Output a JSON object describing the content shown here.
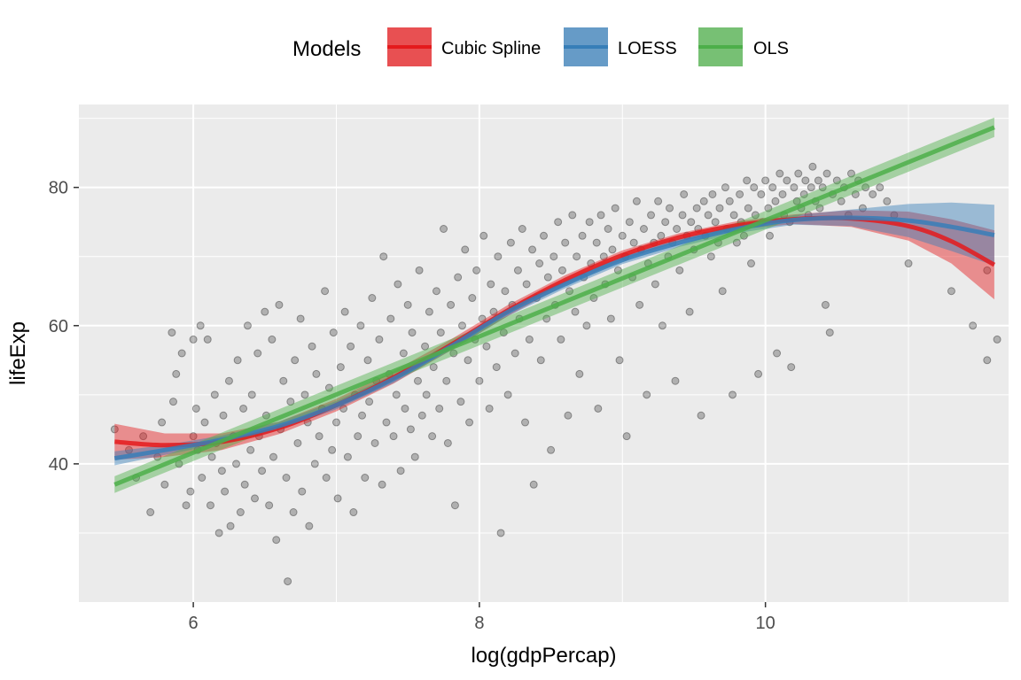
{
  "chart_data": {
    "type": "scatter",
    "xlabel": "log(gdpPercap)",
    "ylabel": "lifeExp",
    "xlim": [
      5.2,
      11.7
    ],
    "ylim": [
      20,
      92
    ],
    "x_ticks": [
      6,
      8,
      10
    ],
    "y_ticks": [
      40,
      60,
      80
    ],
    "grid": true,
    "panel_background": "#EBEBEB",
    "legend": {
      "title": "Models",
      "position": "top",
      "entries": [
        "Cubic Spline",
        "LOESS",
        "OLS"
      ]
    },
    "points_style": {
      "color": "#000000",
      "alpha": 0.25
    },
    "scatter_points": [
      [
        5.45,
        45
      ],
      [
        5.55,
        42
      ],
      [
        5.6,
        38
      ],
      [
        5.65,
        44
      ],
      [
        5.7,
        33
      ],
      [
        5.75,
        41
      ],
      [
        5.78,
        46
      ],
      [
        5.8,
        37
      ],
      [
        5.85,
        59
      ],
      [
        5.86,
        49
      ],
      [
        5.88,
        53
      ],
      [
        5.9,
        40
      ],
      [
        5.92,
        56
      ],
      [
        5.95,
        34
      ],
      [
        5.98,
        36
      ],
      [
        6.0,
        58
      ],
      [
        6.0,
        44
      ],
      [
        6.02,
        48
      ],
      [
        6.03,
        42
      ],
      [
        6.05,
        60
      ],
      [
        6.06,
        38
      ],
      [
        6.08,
        46
      ],
      [
        6.1,
        58
      ],
      [
        6.12,
        34
      ],
      [
        6.13,
        41
      ],
      [
        6.15,
        50
      ],
      [
        6.16,
        43
      ],
      [
        6.18,
        30
      ],
      [
        6.2,
        39
      ],
      [
        6.21,
        47
      ],
      [
        6.22,
        36
      ],
      [
        6.25,
        52
      ],
      [
        6.26,
        31
      ],
      [
        6.28,
        44
      ],
      [
        6.3,
        40
      ],
      [
        6.31,
        55
      ],
      [
        6.33,
        33
      ],
      [
        6.35,
        48
      ],
      [
        6.36,
        37
      ],
      [
        6.38,
        60
      ],
      [
        6.4,
        42
      ],
      [
        6.41,
        50
      ],
      [
        6.43,
        35
      ],
      [
        6.45,
        56
      ],
      [
        6.46,
        44
      ],
      [
        6.48,
        39
      ],
      [
        6.5,
        62
      ],
      [
        6.51,
        47
      ],
      [
        6.53,
        34
      ],
      [
        6.55,
        58
      ],
      [
        6.56,
        41
      ],
      [
        6.58,
        29
      ],
      [
        6.6,
        63
      ],
      [
        6.61,
        45
      ],
      [
        6.63,
        52
      ],
      [
        6.65,
        38
      ],
      [
        6.66,
        23
      ],
      [
        6.68,
        49
      ],
      [
        6.7,
        33
      ],
      [
        6.71,
        55
      ],
      [
        6.73,
        43
      ],
      [
        6.75,
        61
      ],
      [
        6.76,
        36
      ],
      [
        6.78,
        50
      ],
      [
        6.8,
        46
      ],
      [
        6.81,
        31
      ],
      [
        6.83,
        57
      ],
      [
        6.85,
        40
      ],
      [
        6.86,
        53
      ],
      [
        6.88,
        44
      ],
      [
        6.9,
        48
      ],
      [
        6.92,
        65
      ],
      [
        6.93,
        38
      ],
      [
        6.95,
        51
      ],
      [
        6.97,
        42
      ],
      [
        6.98,
        59
      ],
      [
        7.0,
        46
      ],
      [
        7.01,
        35
      ],
      [
        7.03,
        54
      ],
      [
        7.05,
        48
      ],
      [
        7.06,
        62
      ],
      [
        7.08,
        41
      ],
      [
        7.1,
        57
      ],
      [
        7.12,
        33
      ],
      [
        7.13,
        50
      ],
      [
        7.15,
        44
      ],
      [
        7.17,
        60
      ],
      [
        7.18,
        47
      ],
      [
        7.2,
        38
      ],
      [
        7.22,
        55
      ],
      [
        7.23,
        49
      ],
      [
        7.25,
        64
      ],
      [
        7.27,
        43
      ],
      [
        7.28,
        52
      ],
      [
        7.3,
        58
      ],
      [
        7.32,
        37
      ],
      [
        7.33,
        70
      ],
      [
        7.35,
        46
      ],
      [
        7.37,
        53
      ],
      [
        7.38,
        61
      ],
      [
        7.4,
        44
      ],
      [
        7.42,
        50
      ],
      [
        7.43,
        66
      ],
      [
        7.45,
        39
      ],
      [
        7.47,
        56
      ],
      [
        7.48,
        48
      ],
      [
        7.5,
        63
      ],
      [
        7.52,
        45
      ],
      [
        7.53,
        59
      ],
      [
        7.55,
        41
      ],
      [
        7.57,
        52
      ],
      [
        7.58,
        68
      ],
      [
        7.6,
        47
      ],
      [
        7.62,
        57
      ],
      [
        7.63,
        50
      ],
      [
        7.65,
        62
      ],
      [
        7.67,
        44
      ],
      [
        7.68,
        54
      ],
      [
        7.7,
        65
      ],
      [
        7.72,
        48
      ],
      [
        7.73,
        59
      ],
      [
        7.75,
        74
      ],
      [
        7.77,
        52
      ],
      [
        7.78,
        43
      ],
      [
        7.8,
        63
      ],
      [
        7.82,
        56
      ],
      [
        7.83,
        34
      ],
      [
        7.85,
        67
      ],
      [
        7.87,
        49
      ],
      [
        7.88,
        60
      ],
      [
        7.9,
        71
      ],
      [
        7.92,
        55
      ],
      [
        7.93,
        46
      ],
      [
        7.95,
        64
      ],
      [
        7.97,
        58
      ],
      [
        7.98,
        68
      ],
      [
        8.0,
        52
      ],
      [
        8.02,
        61
      ],
      [
        8.03,
        73
      ],
      [
        8.05,
        57
      ],
      [
        8.07,
        48
      ],
      [
        8.08,
        66
      ],
      [
        8.1,
        62
      ],
      [
        8.12,
        54
      ],
      [
        8.13,
        70
      ],
      [
        8.15,
        30
      ],
      [
        8.17,
        59
      ],
      [
        8.18,
        65
      ],
      [
        8.2,
        50
      ],
      [
        8.22,
        72
      ],
      [
        8.23,
        63
      ],
      [
        8.25,
        56
      ],
      [
        8.27,
        68
      ],
      [
        8.28,
        61
      ],
      [
        8.3,
        74
      ],
      [
        8.32,
        46
      ],
      [
        8.33,
        66
      ],
      [
        8.35,
        58
      ],
      [
        8.37,
        71
      ],
      [
        8.38,
        37
      ],
      [
        8.4,
        64
      ],
      [
        8.42,
        69
      ],
      [
        8.43,
        55
      ],
      [
        8.45,
        73
      ],
      [
        8.47,
        61
      ],
      [
        8.48,
        67
      ],
      [
        8.5,
        42
      ],
      [
        8.52,
        70
      ],
      [
        8.53,
        63
      ],
      [
        8.55,
        75
      ],
      [
        8.57,
        58
      ],
      [
        8.58,
        68
      ],
      [
        8.6,
        72
      ],
      [
        8.62,
        47
      ],
      [
        8.63,
        65
      ],
      [
        8.65,
        76
      ],
      [
        8.67,
        62
      ],
      [
        8.68,
        70
      ],
      [
        8.7,
        53
      ],
      [
        8.72,
        73
      ],
      [
        8.73,
        67
      ],
      [
        8.75,
        60
      ],
      [
        8.77,
        75
      ],
      [
        8.78,
        69
      ],
      [
        8.8,
        64
      ],
      [
        8.82,
        72
      ],
      [
        8.83,
        48
      ],
      [
        8.85,
        76
      ],
      [
        8.87,
        70
      ],
      [
        8.88,
        66
      ],
      [
        8.9,
        74
      ],
      [
        8.92,
        61
      ],
      [
        8.93,
        71
      ],
      [
        8.95,
        77
      ],
      [
        8.97,
        68
      ],
      [
        8.98,
        55
      ],
      [
        9.0,
        73
      ],
      [
        9.02,
        70
      ],
      [
        9.03,
        44
      ],
      [
        9.05,
        75
      ],
      [
        9.07,
        67
      ],
      [
        9.08,
        72
      ],
      [
        9.1,
        78
      ],
      [
        9.12,
        63
      ],
      [
        9.13,
        71
      ],
      [
        9.15,
        74
      ],
      [
        9.17,
        50
      ],
      [
        9.18,
        69
      ],
      [
        9.2,
        76
      ],
      [
        9.22,
        72
      ],
      [
        9.23,
        66
      ],
      [
        9.25,
        78
      ],
      [
        9.27,
        73
      ],
      [
        9.28,
        60
      ],
      [
        9.3,
        75
      ],
      [
        9.32,
        70
      ],
      [
        9.33,
        77
      ],
      [
        9.35,
        72
      ],
      [
        9.37,
        52
      ],
      [
        9.38,
        74
      ],
      [
        9.4,
        68
      ],
      [
        9.42,
        76
      ],
      [
        9.43,
        79
      ],
      [
        9.45,
        73
      ],
      [
        9.47,
        62
      ],
      [
        9.48,
        75
      ],
      [
        9.5,
        71
      ],
      [
        9.52,
        77
      ],
      [
        9.53,
        74
      ],
      [
        9.55,
        47
      ],
      [
        9.57,
        78
      ],
      [
        9.58,
        73
      ],
      [
        9.6,
        76
      ],
      [
        9.62,
        70
      ],
      [
        9.63,
        79
      ],
      [
        9.65,
        75
      ],
      [
        9.67,
        72
      ],
      [
        9.68,
        77
      ],
      [
        9.7,
        65
      ],
      [
        9.72,
        80
      ],
      [
        9.73,
        74
      ],
      [
        9.75,
        78
      ],
      [
        9.77,
        50
      ],
      [
        9.78,
        76
      ],
      [
        9.8,
        72
      ],
      [
        9.82,
        79
      ],
      [
        9.83,
        75
      ],
      [
        9.85,
        73
      ],
      [
        9.87,
        81
      ],
      [
        9.88,
        77
      ],
      [
        9.9,
        69
      ],
      [
        9.92,
        80
      ],
      [
        9.93,
        76
      ],
      [
        9.95,
        53
      ],
      [
        9.97,
        79
      ],
      [
        9.98,
        75
      ],
      [
        10.0,
        81
      ],
      [
        10.02,
        77
      ],
      [
        10.03,
        73
      ],
      [
        10.05,
        80
      ],
      [
        10.07,
        78
      ],
      [
        10.08,
        56
      ],
      [
        10.1,
        82
      ],
      [
        10.12,
        79
      ],
      [
        10.13,
        76
      ],
      [
        10.15,
        81
      ],
      [
        10.17,
        75
      ],
      [
        10.18,
        54
      ],
      [
        10.2,
        80
      ],
      [
        10.22,
        78
      ],
      [
        10.23,
        82
      ],
      [
        10.25,
        77
      ],
      [
        10.27,
        79
      ],
      [
        10.28,
        81
      ],
      [
        10.3,
        76
      ],
      [
        10.32,
        80
      ],
      [
        10.33,
        83
      ],
      [
        10.35,
        78
      ],
      [
        10.37,
        81
      ],
      [
        10.38,
        77
      ],
      [
        10.4,
        80
      ],
      [
        10.42,
        63
      ],
      [
        10.43,
        82
      ],
      [
        10.45,
        59
      ],
      [
        10.47,
        79
      ],
      [
        10.5,
        81
      ],
      [
        10.53,
        78
      ],
      [
        10.55,
        80
      ],
      [
        10.58,
        76
      ],
      [
        10.6,
        82
      ],
      [
        10.63,
        79
      ],
      [
        10.65,
        81
      ],
      [
        10.68,
        77
      ],
      [
        10.7,
        80
      ],
      [
        10.75,
        79
      ],
      [
        10.8,
        80
      ],
      [
        10.85,
        78
      ],
      [
        10.9,
        76
      ],
      [
        11.0,
        69
      ],
      [
        11.3,
        65
      ],
      [
        11.45,
        60
      ],
      [
        11.55,
        68
      ],
      [
        11.55,
        55
      ],
      [
        11.62,
        58
      ]
    ],
    "series": [
      {
        "name": "Cubic Spline",
        "color": "#E41A1C",
        "x": [
          5.45,
          5.8,
          6.2,
          6.6,
          7.0,
          7.4,
          7.8,
          8.2,
          8.6,
          9.0,
          9.4,
          9.8,
          10.2,
          10.6,
          11.0,
          11.3,
          11.6
        ],
        "y": [
          43.2,
          42.7,
          43.2,
          45.2,
          48.5,
          52.5,
          57.2,
          62.2,
          66.6,
          70.2,
          72.8,
          74.5,
          75.4,
          75.5,
          74.4,
          72.2,
          68.8
        ],
        "lower": [
          40.6,
          41.0,
          42.0,
          44.3,
          47.6,
          51.6,
          56.4,
          61.4,
          65.9,
          69.5,
          72.2,
          73.9,
          74.7,
          74.3,
          72.3,
          69.0,
          63.8
        ],
        "upper": [
          45.8,
          44.4,
          44.4,
          46.1,
          49.4,
          53.4,
          58.0,
          63.0,
          67.3,
          70.9,
          73.4,
          75.1,
          76.1,
          76.7,
          76.5,
          75.4,
          73.8
        ]
      },
      {
        "name": "LOESS",
        "color": "#377EB8",
        "x": [
          5.45,
          5.8,
          6.2,
          6.6,
          7.0,
          7.4,
          7.8,
          8.2,
          8.6,
          9.0,
          9.4,
          9.8,
          10.2,
          10.6,
          11.0,
          11.3,
          11.6
        ],
        "y": [
          40.8,
          42.0,
          43.5,
          45.5,
          48.5,
          52.3,
          57.0,
          62.0,
          66.0,
          69.5,
          72.0,
          74.0,
          75.3,
          75.6,
          75.2,
          74.3,
          73.1
        ],
        "lower": [
          39.8,
          41.3,
          42.9,
          44.9,
          47.9,
          51.7,
          56.4,
          61.4,
          65.4,
          68.9,
          71.4,
          73.4,
          74.6,
          74.4,
          72.8,
          70.8,
          68.7
        ],
        "upper": [
          41.8,
          42.7,
          44.1,
          46.1,
          49.1,
          52.9,
          57.6,
          62.6,
          66.6,
          70.1,
          72.6,
          74.6,
          76.0,
          76.8,
          77.6,
          77.8,
          77.5
        ]
      },
      {
        "name": "OLS",
        "color": "#4DAF4A",
        "x": [
          5.45,
          11.6
        ],
        "y": [
          37.0,
          88.7
        ],
        "lower": [
          35.8,
          87.3
        ],
        "upper": [
          38.2,
          90.1
        ]
      }
    ]
  }
}
